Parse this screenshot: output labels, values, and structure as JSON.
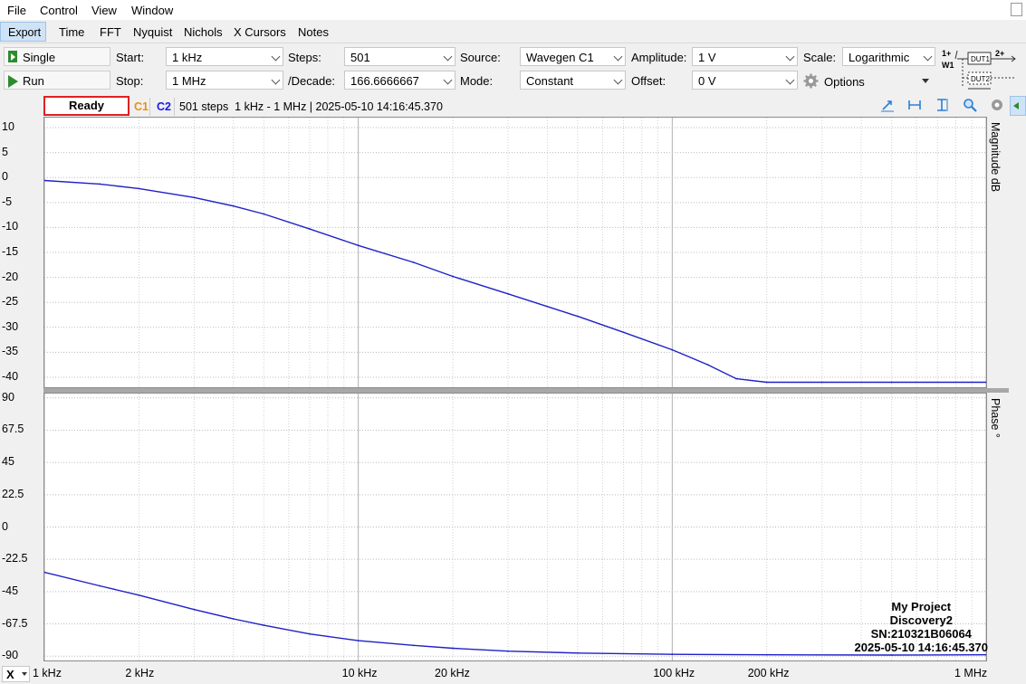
{
  "menu": [
    "File",
    "Control",
    "View",
    "Window"
  ],
  "tabs": [
    "Export",
    "Time",
    "FFT",
    "Nyquist",
    "Nichols",
    "X Cursors",
    "Notes"
  ],
  "buttons": {
    "single": "Single",
    "run": "Run",
    "options": "Options"
  },
  "fields": {
    "start_label": "Start:",
    "start_value": "1 kHz",
    "stop_label": "Stop:",
    "stop_value": "1 MHz",
    "steps_label": "Steps:",
    "steps_value": "501",
    "decade_label": "/Decade:",
    "decade_value": "166.6666667",
    "source_label": "Source:",
    "source_value": "Wavegen C1",
    "mode_label": "Mode:",
    "mode_value": "Constant",
    "amplitude_label": "Amplitude:",
    "amplitude_value": "1 V",
    "offset_label": "Offset:",
    "offset_value": "0 V",
    "scale_label": "Scale:",
    "scale_value": "Logarithmic"
  },
  "diagram": {
    "w1": "W1",
    "p1": "1+",
    "p2": "2+",
    "dut1": "DUT1",
    "dut2": "DUT2"
  },
  "status": {
    "state": "Ready",
    "c1": "C1",
    "c2": "C2",
    "info": "501 steps  1 kHz - 1 MHz | 2025-05-10 14:16:45.370"
  },
  "colors": {
    "c1": "#e8901a",
    "c2": "#1a1ae6",
    "trace": "#2020c8",
    "ready_border": "#e02020"
  },
  "watermark": {
    "line1": "My Project",
    "line2": "Discovery2",
    "line3": "SN:210321B06064",
    "line4": "2025-05-10 14:16:45.370"
  },
  "x_axis_select": "X",
  "chart_data": [
    {
      "type": "line",
      "ylabel": "Magnitude  dB",
      "xscale": "log",
      "xlim": [
        1000,
        1000000
      ],
      "ylim": [
        -42,
        12
      ],
      "y_ticks": [
        "10",
        "5",
        "0",
        "-5",
        "-10",
        "-15",
        "-20",
        "-25",
        "-30",
        "-35",
        "-40"
      ],
      "x_ticks": [
        "1 kHz",
        "2 kHz",
        "10 kHz",
        "20 kHz",
        "100 kHz",
        "200 kHz",
        "1 MHz"
      ],
      "series": [
        {
          "x": [
            1000,
            1500,
            2000,
            3000,
            4000,
            5000,
            7000,
            10000,
            15000,
            20000,
            30000,
            50000,
            70000,
            100000,
            130000,
            160000,
            200000,
            300000,
            500000,
            1000000
          ],
          "y": [
            -0.6,
            -1.3,
            -2.2,
            -4.0,
            -5.7,
            -7.3,
            -10.3,
            -13.6,
            -17.0,
            -19.8,
            -23.3,
            -27.8,
            -31.0,
            -34.5,
            -37.5,
            -40.3,
            -41.0,
            -41.0,
            -41.0,
            -41.0
          ]
        }
      ]
    },
    {
      "type": "line",
      "ylabel": "Phase  °",
      "xscale": "log",
      "xlim": [
        1000,
        1000000
      ],
      "ylim": [
        -93,
        93
      ],
      "y_ticks": [
        "90",
        "67.5",
        "45",
        "22.5",
        "0",
        "-22.5",
        "-45",
        "-67.5",
        "-90"
      ],
      "x_ticks": [
        "1 kHz",
        "2 kHz",
        "10 kHz",
        "20 kHz",
        "100 kHz",
        "200 kHz",
        "1 MHz"
      ],
      "series": [
        {
          "x": [
            1000,
            1500,
            2000,
            3000,
            4000,
            5000,
            7000,
            10000,
            15000,
            20000,
            30000,
            50000,
            100000,
            200000,
            500000,
            1000000
          ],
          "y": [
            -31.5,
            -41.0,
            -47.5,
            -57.5,
            -64.0,
            -68.5,
            -74.5,
            -79.2,
            -82.5,
            -84.5,
            -86.5,
            -87.8,
            -88.7,
            -89.0,
            -89.2,
            -89.0
          ]
        }
      ]
    }
  ]
}
